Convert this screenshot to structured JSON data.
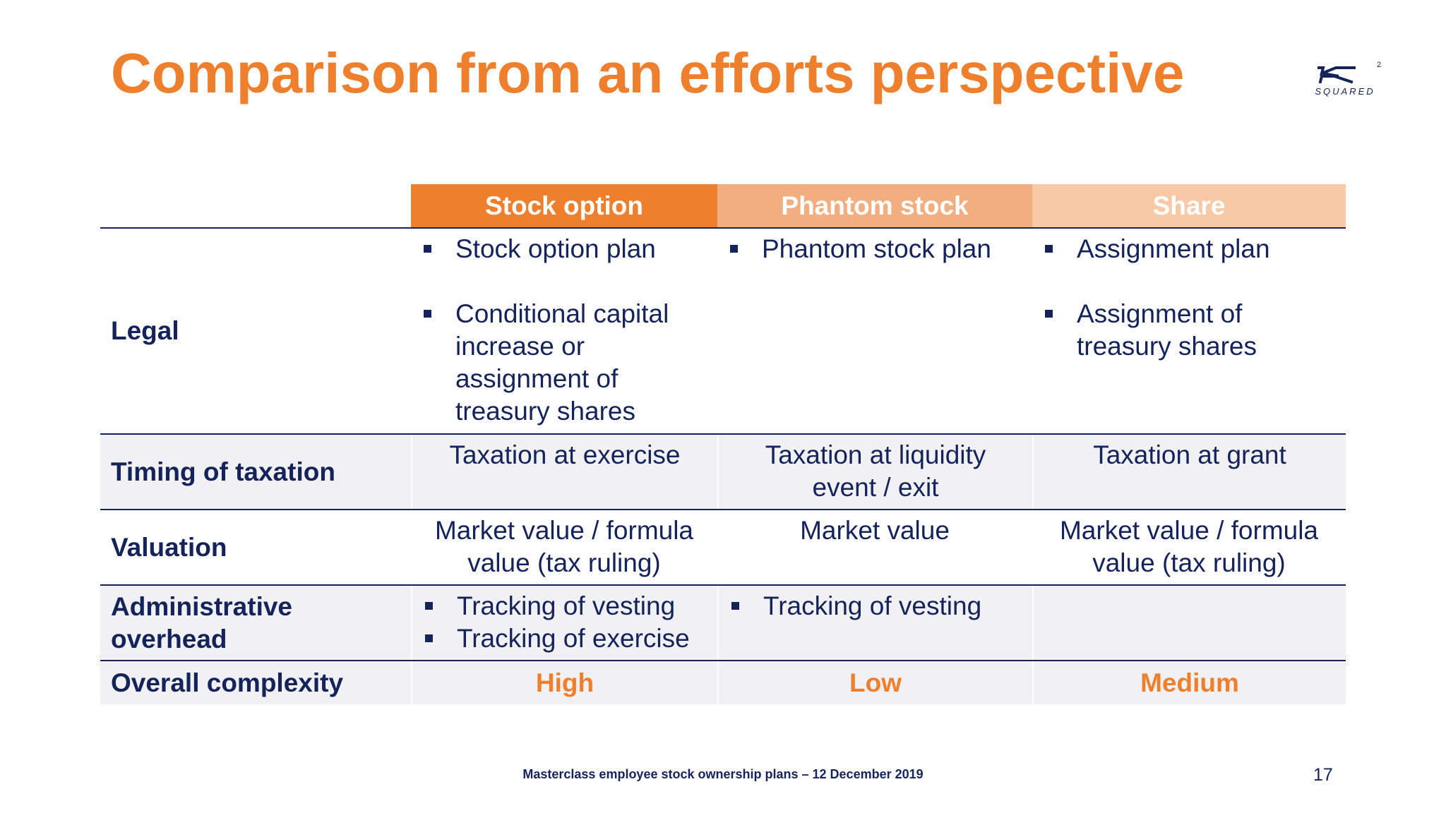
{
  "slide": {
    "title": "Comparison from an efforts perspective",
    "logo_text": "SQUARED",
    "logo_superscript": "2",
    "footer": "Masterclass employee stock ownership plans – 12 December 2019",
    "page_number": "17"
  },
  "table": {
    "columns": [
      "Stock option",
      "Phantom stock",
      "Share"
    ],
    "rows": {
      "legal": {
        "label": "Legal",
        "stock_option": [
          "Stock option plan",
          "Conditional capital increase or assignment of treasury shares"
        ],
        "phantom_stock": [
          "Phantom stock plan"
        ],
        "share": [
          "Assignment plan",
          "Assignment of treasury shares"
        ]
      },
      "timing": {
        "label": "Timing of taxation",
        "stock_option": "Taxation at exercise",
        "phantom_stock": "Taxation at liquidity event / exit",
        "share": "Taxation at grant"
      },
      "valuation": {
        "label": "Valuation",
        "stock_option": "Market value / formula value (tax ruling)",
        "phantom_stock": "Market value",
        "share": "Market value / formula value (tax ruling)"
      },
      "admin": {
        "label": "Administrative overhead",
        "stock_option": [
          "Tracking of vesting",
          "Tracking of exercise"
        ],
        "phantom_stock": [
          "Tracking of vesting"
        ],
        "share": []
      },
      "complexity": {
        "label": "Overall complexity",
        "stock_option": "High",
        "phantom_stock": "Low",
        "share": "Medium"
      }
    }
  },
  "colors": {
    "accent_orange": "#ee7f2d",
    "header_mid": "#f2ae7f",
    "header_light": "#f7c9a7",
    "navy": "#14235a",
    "shade": "#f1f1f3"
  }
}
